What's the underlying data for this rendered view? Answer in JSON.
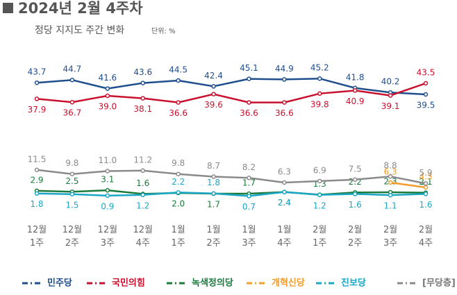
{
  "chart_data": [
    {
      "type": "line",
      "title": "2024년 2월 4주차",
      "subtitle": "정당 지지도 주간 변화",
      "unit": "단위: %",
      "ylim": [
        35,
        46
      ],
      "series": [
        {
          "name": "민주당",
          "color": "#1f4e8c",
          "values": [
            43.7,
            44.7,
            41.6,
            43.6,
            44.5,
            42.4,
            45.1,
            44.9,
            45.2,
            41.8,
            40.2,
            39.5
          ]
        },
        {
          "name": "국민의힘",
          "color": "#c8102e",
          "values": [
            37.9,
            36.7,
            39.0,
            38.1,
            36.6,
            39.6,
            36.6,
            36.6,
            39.8,
            40.9,
            39.1,
            43.5
          ],
          "value_labels": [
            "37.9",
            "36.7",
            "39.0",
            "38.1",
            "36.6",
            "39.6",
            "36.6",
            "36.6",
            "39.8",
            "40.9",
            "39.1",
            "43.5"
          ]
        }
      ]
    },
    {
      "type": "line",
      "categories": [
        "12월\n1주",
        "12월\n2주",
        "12월\n3주",
        "12월\n4주",
        "1월\n1주",
        "1월\n2주",
        "1월\n3주",
        "1월\n4주",
        "2월\n1주",
        "2월\n2주",
        "2월\n3주",
        "2월\n4주"
      ],
      "ylim": [
        0,
        12
      ],
      "series": [
        {
          "name": "녹색정의당",
          "color": "#1a7a3c",
          "values": [
            2.9,
            2.5,
            3.1,
            1.6,
            2.0,
            1.7,
            1.7,
            2.4,
            1.3,
            2.2,
            2.3,
            2.1
          ],
          "value_labels": [
            "2.9",
            "2.5",
            "3.1",
            "1.6",
            "2.0",
            "1.7",
            "1.7",
            "2.4",
            "1.3",
            "2.2",
            "2.3",
            "2.1"
          ]
        },
        {
          "name": "개혁신당",
          "color": "#f39c2b",
          "values": [
            null,
            null,
            null,
            null,
            null,
            null,
            null,
            null,
            null,
            null,
            6.3,
            4.3
          ]
        },
        {
          "name": "진보당",
          "color": "#1aa6c4",
          "values": [
            1.8,
            1.5,
            0.9,
            1.2,
            2.2,
            1.8,
            0.7,
            2.4,
            1.2,
            1.6,
            1.1,
            1.6
          ]
        },
        {
          "name": "[무당층]",
          "color": "#8a8a8a",
          "values": [
            11.5,
            9.8,
            11.0,
            11.2,
            9.8,
            8.7,
            8.2,
            6.3,
            6.9,
            7.5,
            8.8,
            5.9
          ],
          "value_labels": [
            "11.5",
            "9.8",
            "11.0",
            "11.2",
            "9.8",
            "8.7",
            "8.2",
            "6.3",
            "6.9",
            "7.5",
            "8.8",
            "5.9"
          ]
        }
      ]
    }
  ]
}
